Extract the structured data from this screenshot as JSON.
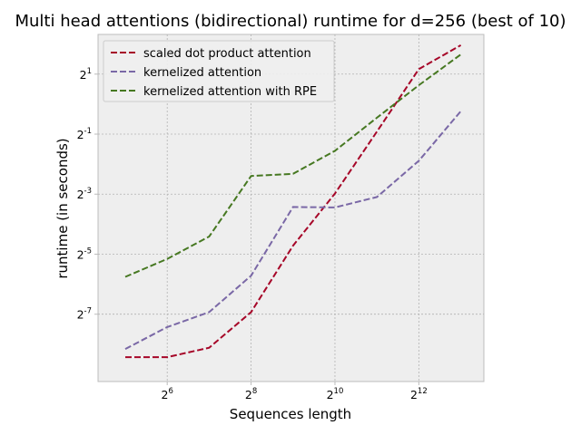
{
  "chart_data": {
    "type": "line",
    "title": "Multi head attentions (bidirectional) runtime for d=256 (best of 10)",
    "xlabel": "Sequences length",
    "ylabel": "runtime (in seconds)",
    "xscale": "log2",
    "yscale": "log2",
    "xlim": [
      20.4,
      12000
    ],
    "ylim": [
      0.00165,
      5.0
    ],
    "x_ticks": [
      {
        "base": "2",
        "exp": "6",
        "value": 64
      },
      {
        "base": "2",
        "exp": "8",
        "value": 256
      },
      {
        "base": "2",
        "exp": "10",
        "value": 1024
      },
      {
        "base": "2",
        "exp": "12",
        "value": 4096
      }
    ],
    "y_ticks": [
      {
        "base": "2",
        "exp": "-7",
        "value": 0.0078125
      },
      {
        "base": "2",
        "exp": "-5",
        "value": 0.03125
      },
      {
        "base": "2",
        "exp": "-3",
        "value": 0.125
      },
      {
        "base": "2",
        "exp": "-1",
        "value": 0.5
      },
      {
        "base": "2",
        "exp": "1",
        "value": 2
      }
    ],
    "x": [
      32,
      64,
      128,
      256,
      512,
      1024,
      2048,
      4096,
      8192
    ],
    "series": [
      {
        "name": "scaled dot product attention",
        "color": "#a60628",
        "values": [
          0.0029,
          0.0029,
          0.0036,
          0.0082,
          0.038,
          0.127,
          0.53,
          2.25,
          3.9
        ]
      },
      {
        "name": "kernelized attention",
        "color": "#7a68a6",
        "values": [
          0.0035,
          0.0058,
          0.0082,
          0.019,
          0.093,
          0.092,
          0.117,
          0.27,
          0.85
        ]
      },
      {
        "name": "kernelized attention with RPE",
        "color": "#467821",
        "values": [
          0.0185,
          0.028,
          0.047,
          0.19,
          0.2,
          0.34,
          0.73,
          1.55,
          3.15
        ]
      }
    ],
    "legend": "top-left",
    "grid": true,
    "style": "bmh"
  }
}
